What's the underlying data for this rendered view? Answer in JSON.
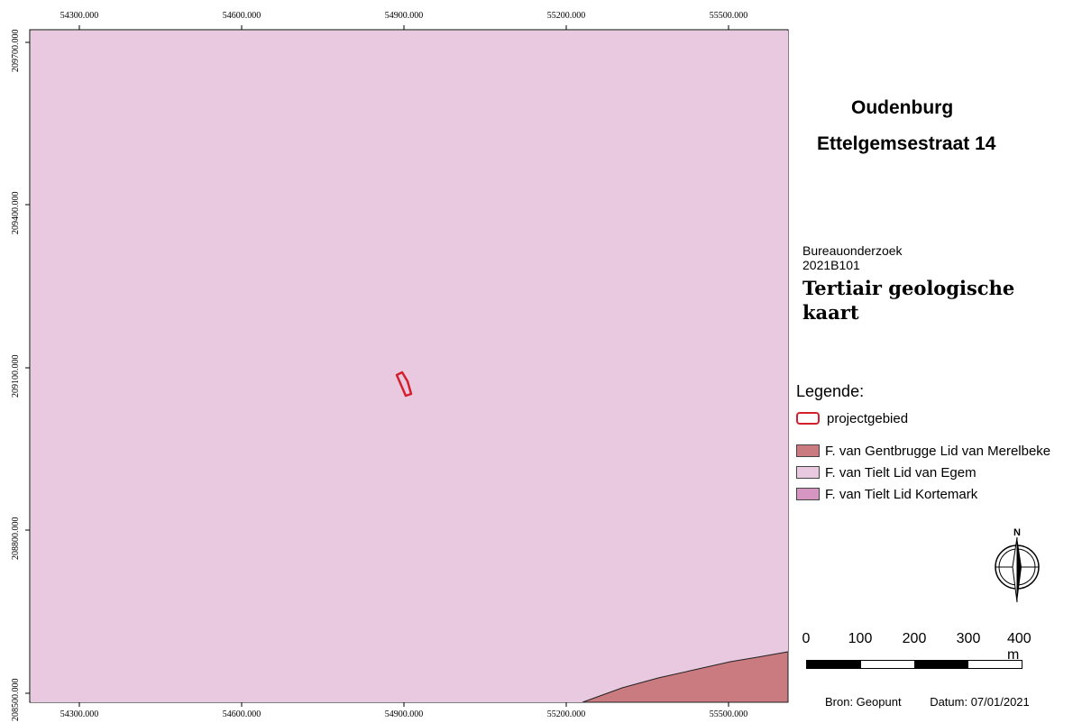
{
  "map": {
    "x_ticks": [
      "54300.000",
      "54600.000",
      "54900.000",
      "55200.000",
      "55500.000"
    ],
    "y_ticks": [
      "209700.000",
      "209400.000",
      "209100.000",
      "208800.000",
      "208500.000"
    ],
    "colors": {
      "egem": "#e8c9df",
      "merelbeke": "#c97b80",
      "kortemark": "#d597c1",
      "project": "#d4202c"
    }
  },
  "title": {
    "place": "Oudenburg",
    "address": "Ettelgemsestraat 14"
  },
  "study": {
    "type": "Bureauonderzoek",
    "code": "2021B101"
  },
  "map_type": "Tertiair geologische kaart",
  "legend": {
    "title": "Legende:",
    "project_area": "projectgebied",
    "units": [
      {
        "label": "F. van Gentbrugge Lid van Merelbeke",
        "color": "#c97b80"
      },
      {
        "label": "F. van Tielt Lid van Egem",
        "color": "#e8c9df"
      },
      {
        "label": "F. van Tielt Lid Kortemark",
        "color": "#d597c1"
      }
    ]
  },
  "north_label": "N",
  "scalebar": {
    "labels": [
      "0",
      "100",
      "200",
      "300",
      "400 m"
    ]
  },
  "footer": {
    "source": "Bron: Geopunt",
    "date": "Datum: 07/01/2021"
  }
}
